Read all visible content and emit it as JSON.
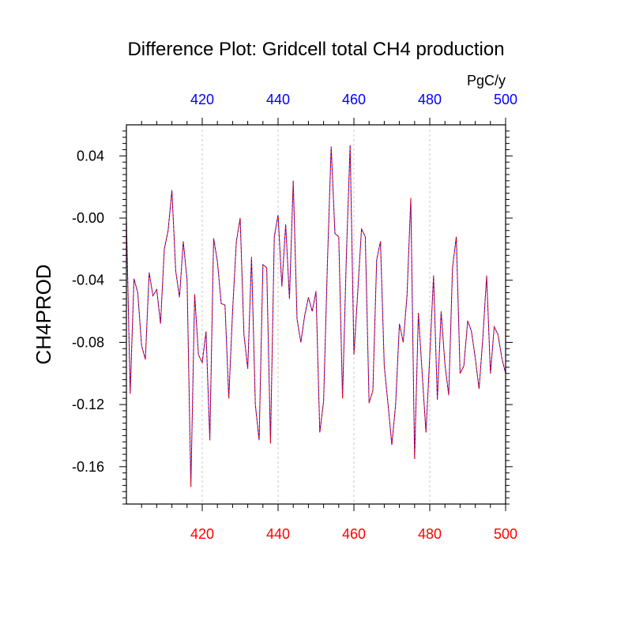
{
  "chart_data": {
    "type": "line",
    "title": "Difference Plot: Gridcell total CH4 production",
    "units": "PgC/y",
    "ylabel": "CH4PROD",
    "xlim": [
      400,
      500
    ],
    "ylim": [
      -0.184,
      0.06
    ],
    "grid": "vertical dashed lines at x tick marks",
    "bottom_axis": {
      "tick_values": [
        420,
        440,
        460,
        480,
        500
      ],
      "tick_labels": [
        "420",
        "440",
        "460",
        "480",
        "500"
      ],
      "color": "#ff0000"
    },
    "top_axis": {
      "tick_values": [
        420,
        440,
        460,
        480,
        500
      ],
      "tick_labels": [
        "420",
        "440",
        "460",
        "480",
        "500"
      ],
      "color": "#0000ff"
    },
    "left_axis": {
      "tick_values": [
        0.04,
        0.0,
        -0.04,
        -0.08,
        -0.12,
        -0.16
      ],
      "tick_labels": [
        "0.04",
        "-0.00",
        "-0.04",
        "-0.08",
        "-0.12",
        "-0.16"
      ]
    },
    "series": [
      {
        "color": "#ff0000",
        "style": "dashed"
      },
      {
        "color": "#0000ff",
        "style": "dashed"
      }
    ],
    "x": [
      400,
      401,
      402,
      403,
      404,
      405,
      406,
      407,
      408,
      409,
      410,
      411,
      412,
      413,
      414,
      415,
      416,
      417,
      418,
      419,
      420,
      421,
      422,
      423,
      424,
      425,
      426,
      427,
      428,
      429,
      430,
      431,
      432,
      433,
      434,
      435,
      436,
      437,
      438,
      439,
      440,
      441,
      442,
      443,
      444,
      445,
      446,
      447,
      448,
      449,
      450,
      451,
      452,
      453,
      454,
      455,
      456,
      457,
      458,
      459,
      460,
      461,
      462,
      463,
      464,
      465,
      466,
      467,
      468,
      469,
      470,
      471,
      472,
      473,
      474,
      475,
      476,
      477,
      478,
      479,
      480,
      481,
      482,
      483,
      484,
      485,
      486,
      487,
      488,
      489,
      490,
      491,
      492,
      493,
      494,
      495,
      496,
      497,
      498,
      499,
      500
    ],
    "values": [
      0.0,
      -0.113,
      -0.039,
      -0.048,
      -0.082,
      -0.091,
      -0.035,
      -0.05,
      -0.046,
      -0.068,
      -0.02,
      -0.008,
      0.018,
      -0.034,
      -0.051,
      -0.015,
      -0.04,
      -0.173,
      -0.049,
      -0.088,
      -0.093,
      -0.073,
      -0.143,
      -0.013,
      -0.028,
      -0.055,
      -0.056,
      -0.116,
      -0.06,
      -0.015,
      0.0,
      -0.075,
      -0.097,
      -0.025,
      -0.12,
      -0.143,
      -0.03,
      -0.032,
      -0.145,
      -0.012,
      0.002,
      -0.044,
      -0.004,
      -0.052,
      0.024,
      -0.065,
      -0.08,
      -0.063,
      -0.051,
      -0.06,
      -0.047,
      -0.138,
      -0.118,
      -0.03,
      0.046,
      -0.01,
      -0.012,
      -0.116,
      -0.025,
      0.047,
      -0.088,
      -0.048,
      -0.007,
      -0.012,
      -0.119,
      -0.111,
      -0.027,
      -0.015,
      -0.095,
      -0.12,
      -0.146,
      -0.12,
      -0.068,
      -0.08,
      -0.05,
      0.013,
      -0.155,
      -0.061,
      -0.1,
      -0.138,
      -0.089,
      -0.037,
      -0.117,
      -0.06,
      -0.094,
      -0.114,
      -0.032,
      -0.012,
      -0.1,
      -0.095,
      -0.066,
      -0.073,
      -0.09,
      -0.11,
      -0.077,
      -0.037,
      -0.1,
      -0.07,
      -0.075,
      -0.09,
      -0.1
    ]
  }
}
